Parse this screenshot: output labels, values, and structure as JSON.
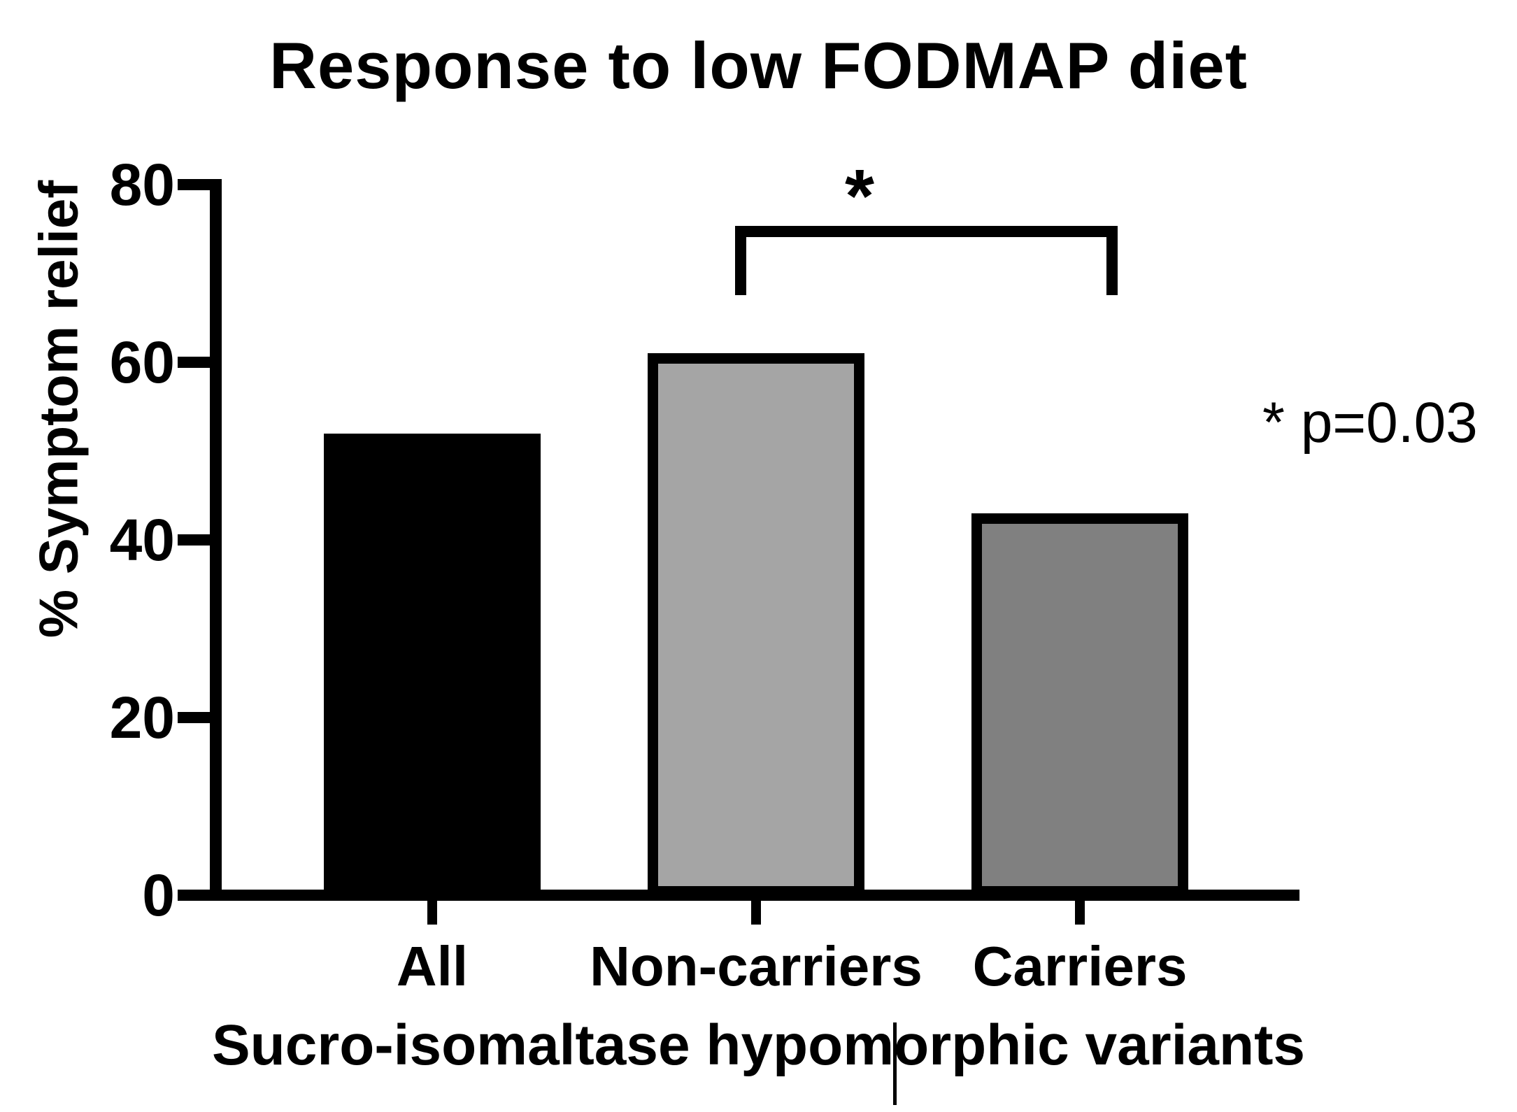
{
  "title": "Response to low FODMAP diet",
  "annotations": {
    "bracket_label": "*",
    "p_value_note": "* p=0.03"
  },
  "chart_data": {
    "type": "bar",
    "title": "Response to low FODMAP diet",
    "categories": [
      "All",
      "Non-carriers",
      "Carriers"
    ],
    "values": [
      52,
      61,
      43
    ],
    "bar_colors": [
      "#000000",
      "#a5a5a5",
      "#808080"
    ],
    "bar_border_color": "#000000",
    "xlabel": "Sucro-isomaltase hypomorphic variants",
    "ylabel": "% Symptom relief",
    "ylim": [
      0,
      80
    ],
    "yticks": [
      0,
      20,
      40,
      60,
      80
    ],
    "grid": false,
    "legend_position": "none",
    "significance": {
      "comparison": [
        "Non-carriers",
        "Carriers"
      ],
      "label": "*",
      "p_value": "* p=0.03"
    }
  }
}
